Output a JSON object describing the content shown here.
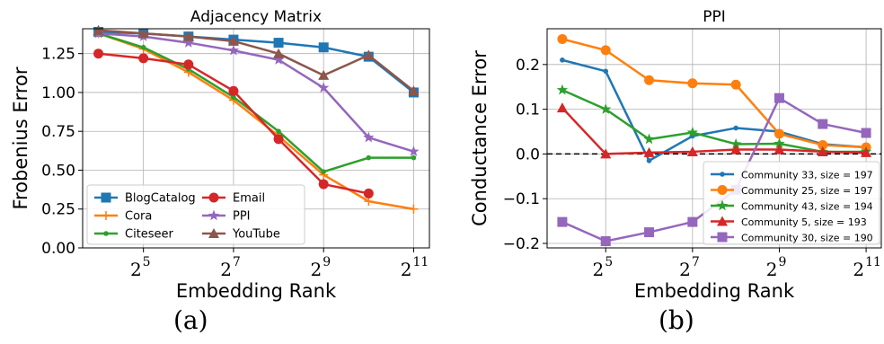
{
  "chart_data": [
    {
      "type": "line",
      "title": "Adjacency Matrix",
      "xlabel": "Embedding Rank",
      "ylabel": "Frobenius Error",
      "x": [
        16,
        32,
        64,
        128,
        256,
        512,
        1024,
        2048
      ],
      "x_scale": "log2",
      "xticks": [
        {
          "value": 32,
          "base": "2",
          "exp": "5"
        },
        {
          "value": 128,
          "base": "2",
          "exp": "7"
        },
        {
          "value": 512,
          "base": "2",
          "exp": "9"
        },
        {
          "value": 2048,
          "base": "2",
          "exp": "11"
        }
      ],
      "yticks": [
        "0.00",
        "0.25",
        "0.50",
        "0.75",
        "1.00",
        "1.25"
      ],
      "ylim": [
        0.0,
        1.41
      ],
      "grid": true,
      "legend_position": "lower-left",
      "caption": "(a)",
      "series": [
        {
          "name": "BlogCatalog",
          "color": "#1f77b4",
          "marker": "square",
          "values": [
            1.39,
            1.38,
            1.36,
            1.34,
            1.32,
            1.29,
            1.23,
            1.0
          ]
        },
        {
          "name": "Cora",
          "color": "#ff7f0e",
          "marker": "plus",
          "values": [
            1.38,
            1.28,
            1.13,
            0.95,
            0.72,
            0.47,
            0.3,
            0.25
          ]
        },
        {
          "name": "Citeseer",
          "color": "#2ca02c",
          "marker": "dot",
          "values": [
            1.38,
            1.29,
            1.15,
            0.97,
            0.75,
            0.49,
            0.58,
            0.58
          ]
        },
        {
          "name": "Email",
          "color": "#d62728",
          "marker": "circle",
          "values": [
            1.25,
            1.22,
            1.18,
            1.01,
            0.7,
            0.41,
            0.35,
            null
          ]
        },
        {
          "name": "PPI",
          "color": "#9467bd",
          "marker": "star",
          "values": [
            1.38,
            1.36,
            1.32,
            1.27,
            1.21,
            1.03,
            0.71,
            0.62
          ]
        },
        {
          "name": "YouTube",
          "color": "#8c564b",
          "marker": "triangle",
          "values": [
            1.4,
            1.38,
            1.36,
            1.33,
            1.25,
            1.11,
            1.24,
            1.01
          ]
        }
      ]
    },
    {
      "type": "line",
      "title": "PPI",
      "xlabel": "Embedding Rank",
      "ylabel": "Conductance Error",
      "x": [
        16,
        32,
        64,
        128,
        256,
        512,
        1024,
        2048
      ],
      "x_scale": "log2",
      "xticks": [
        {
          "value": 32,
          "base": "2",
          "exp": "5"
        },
        {
          "value": 128,
          "base": "2",
          "exp": "7"
        },
        {
          "value": 512,
          "base": "2",
          "exp": "9"
        },
        {
          "value": 2048,
          "base": "2",
          "exp": "11"
        }
      ],
      "yticks": [
        "−0.2",
        "−0.1",
        "0.0",
        "0.1",
        "0.2"
      ],
      "ylim": [
        -0.21,
        0.28
      ],
      "grid": true,
      "reference_line": {
        "y": 0.0,
        "style": "dashed",
        "color": "#000000"
      },
      "legend_position": "lower-right",
      "caption": "(b)",
      "series": [
        {
          "name": "Community 33, size = 197",
          "color": "#1f77b4",
          "marker": "dot",
          "values": [
            0.21,
            0.185,
            -0.015,
            0.04,
            0.058,
            0.05,
            0.022,
            0.015
          ]
        },
        {
          "name": "Community 25, size = 197",
          "color": "#ff7f0e",
          "marker": "circle",
          "values": [
            0.257,
            0.232,
            0.165,
            0.158,
            0.155,
            0.045,
            0.02,
            0.015
          ]
        },
        {
          "name": "Community 43, size = 194",
          "color": "#2ca02c",
          "marker": "star",
          "values": [
            0.143,
            0.1,
            0.033,
            0.048,
            0.022,
            0.023,
            0.005,
            0.005
          ]
        },
        {
          "name": "Community 5, size = 193",
          "color": "#d62728",
          "marker": "triangle",
          "values": [
            0.103,
            0.0,
            0.003,
            0.005,
            0.01,
            0.01,
            0.005,
            0.003
          ]
        },
        {
          "name": "Community 30, size = 190",
          "color": "#9467bd",
          "marker": "square",
          "values": [
            -0.152,
            -0.195,
            -0.175,
            -0.152,
            -0.08,
            0.125,
            0.067,
            0.047
          ]
        }
      ]
    }
  ]
}
